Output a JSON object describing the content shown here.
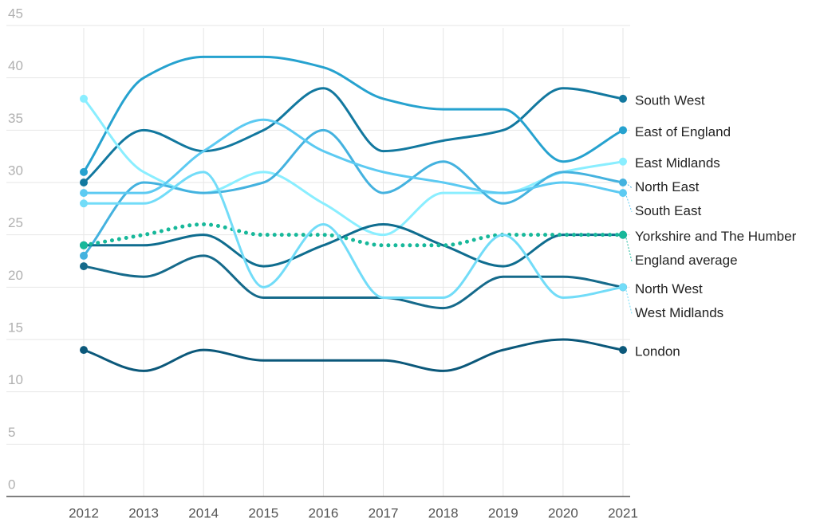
{
  "chart_data": {
    "type": "line",
    "categories": [
      "2012",
      "2013",
      "2014",
      "2015",
      "2016",
      "2017",
      "2018",
      "2019",
      "2020",
      "2021"
    ],
    "ylim": [
      0,
      45
    ],
    "yticks": [
      0,
      5,
      10,
      15,
      20,
      25,
      30,
      35,
      40,
      45
    ],
    "grid": true,
    "series": [
      {
        "name": "South West",
        "color": "#12789f",
        "values": [
          30,
          35,
          33,
          35,
          39,
          33,
          34,
          35,
          39,
          38
        ]
      },
      {
        "name": "East of England",
        "color": "#26a2cf",
        "values": [
          31,
          40,
          42,
          42,
          41,
          38,
          37,
          37,
          32,
          35
        ]
      },
      {
        "name": "East Midlands",
        "color": "#8aeeff",
        "values": [
          38,
          31,
          29,
          31,
          28,
          25,
          29,
          29,
          31,
          32
        ]
      },
      {
        "name": "North East",
        "color": "#44b2df",
        "values": [
          23,
          30,
          29,
          30,
          35,
          29,
          32,
          28,
          31,
          30
        ]
      },
      {
        "name": "South East",
        "color": "#5ccaf2",
        "values": [
          29,
          29,
          33,
          36,
          33,
          31,
          30,
          29,
          30,
          29
        ]
      },
      {
        "name": "Yorkshire and The Humber",
        "color": "#0f6d8f",
        "values": [
          24,
          24,
          25,
          22,
          24,
          26,
          24,
          22,
          25,
          25
        ]
      },
      {
        "name": "England average",
        "color": "#17b89a",
        "dash": "dotted",
        "values": [
          24,
          25,
          26,
          25,
          25,
          24,
          24,
          25,
          25,
          25
        ]
      },
      {
        "name": "North West",
        "color": "#156a8b",
        "values": [
          22,
          21,
          23,
          19,
          19,
          19,
          18,
          21,
          21,
          20
        ]
      },
      {
        "name": "West Midlands",
        "color": "#72dcf8",
        "values": [
          28,
          28,
          31,
          20,
          26,
          19,
          19,
          25,
          19,
          20
        ]
      },
      {
        "name": "London",
        "color": "#0b587a",
        "values": [
          14,
          12,
          14,
          13,
          13,
          13,
          12,
          14,
          15,
          14
        ]
      }
    ]
  }
}
